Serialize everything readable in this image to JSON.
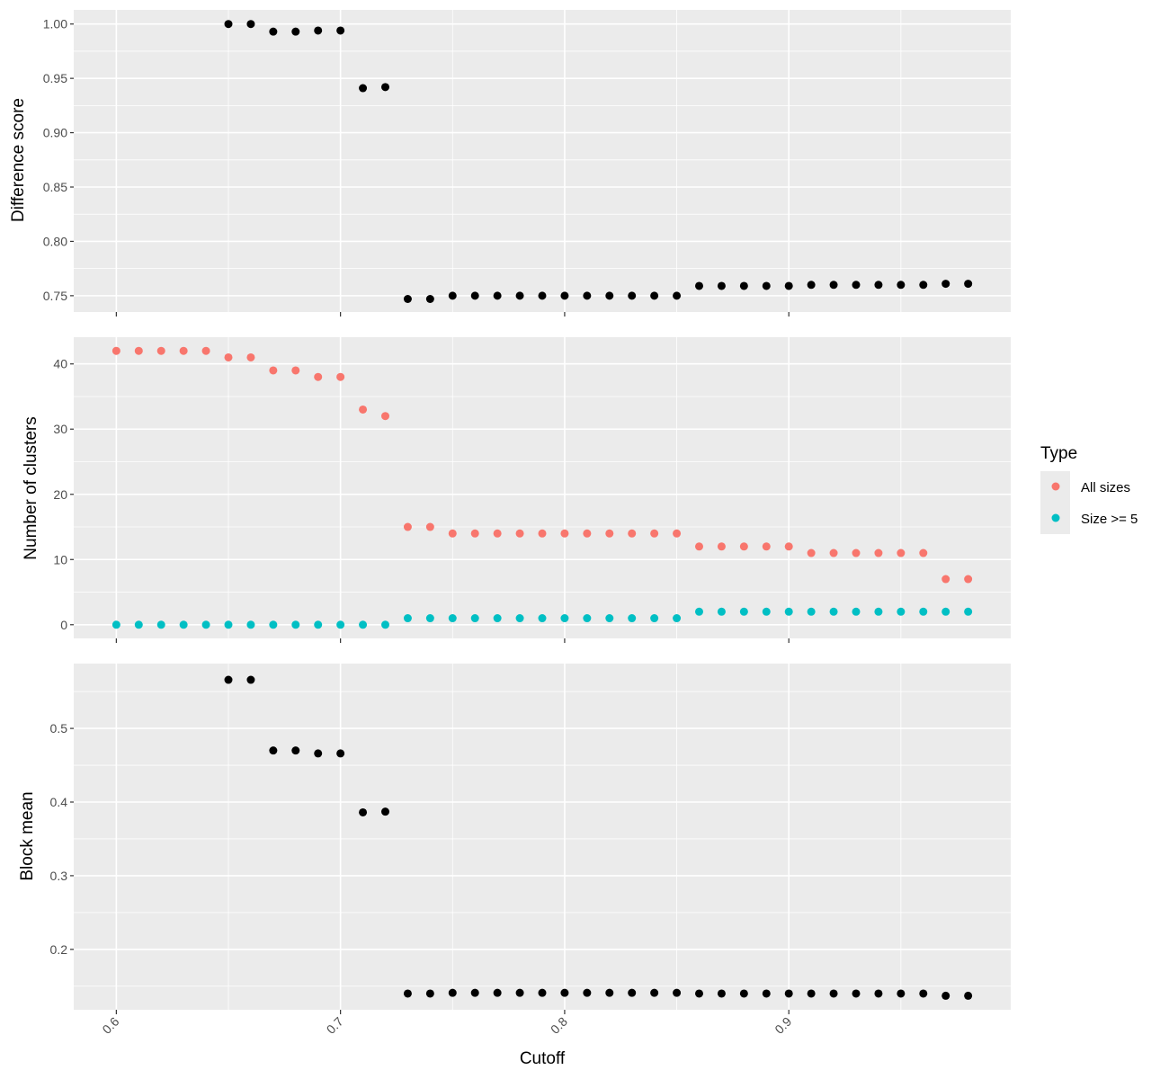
{
  "chart_data": [
    {
      "type": "scatter",
      "id": "difference",
      "ylabel": "Difference score",
      "ylim": [
        0.735,
        1.013
      ],
      "yticks": [
        "0.75",
        "0.80",
        "0.85",
        "0.90",
        "0.95",
        "1.00"
      ],
      "series": [
        {
          "color": "#000000",
          "x": [
            0.65,
            0.66,
            0.67,
            0.68,
            0.69,
            0.7,
            0.71,
            0.72,
            0.73,
            0.74,
            0.75,
            0.76,
            0.77,
            0.78,
            0.79,
            0.8,
            0.81,
            0.82,
            0.83,
            0.84,
            0.85,
            0.86,
            0.87,
            0.88,
            0.89,
            0.9,
            0.91,
            0.92,
            0.93,
            0.94,
            0.95,
            0.96,
            0.97,
            0.98
          ],
          "y": [
            1.0,
            1.0,
            0.993,
            0.993,
            0.994,
            0.994,
            0.941,
            0.942,
            0.747,
            0.747,
            0.75,
            0.75,
            0.75,
            0.75,
            0.75,
            0.75,
            0.75,
            0.75,
            0.75,
            0.75,
            0.75,
            0.759,
            0.759,
            0.759,
            0.759,
            0.759,
            0.76,
            0.76,
            0.76,
            0.76,
            0.76,
            0.76,
            0.761,
            0.761
          ]
        }
      ]
    },
    {
      "type": "scatter",
      "id": "clusters",
      "ylabel": "Number of clusters",
      "ylim": [
        -2.1,
        44.1
      ],
      "yticks": [
        "0",
        "10",
        "20",
        "30",
        "40"
      ],
      "legend": {
        "title": "Type",
        "placement": "right",
        "entries": [
          {
            "label": "All sizes",
            "color": "#F8766D"
          },
          {
            "label": "Size >= 5",
            "color": "#00BFC4"
          }
        ]
      },
      "series": [
        {
          "name": "All sizes",
          "color": "#F8766D",
          "x": [
            0.6,
            0.61,
            0.62,
            0.63,
            0.64,
            0.65,
            0.66,
            0.67,
            0.68,
            0.69,
            0.7,
            0.71,
            0.72,
            0.73,
            0.74,
            0.75,
            0.76,
            0.77,
            0.78,
            0.79,
            0.8,
            0.81,
            0.82,
            0.83,
            0.84,
            0.85,
            0.86,
            0.87,
            0.88,
            0.89,
            0.9,
            0.91,
            0.92,
            0.93,
            0.94,
            0.95,
            0.96,
            0.97,
            0.98
          ],
          "y": [
            42,
            42,
            42,
            42,
            42,
            41,
            41,
            39,
            39,
            38,
            38,
            33,
            32,
            15,
            15,
            14,
            14,
            14,
            14,
            14,
            14,
            14,
            14,
            14,
            14,
            14,
            12,
            12,
            12,
            12,
            12,
            11,
            11,
            11,
            11,
            11,
            11,
            7,
            7
          ]
        },
        {
          "name": "Size >= 5",
          "color": "#00BFC4",
          "x": [
            0.6,
            0.61,
            0.62,
            0.63,
            0.64,
            0.65,
            0.66,
            0.67,
            0.68,
            0.69,
            0.7,
            0.71,
            0.72,
            0.73,
            0.74,
            0.75,
            0.76,
            0.77,
            0.78,
            0.79,
            0.8,
            0.81,
            0.82,
            0.83,
            0.84,
            0.85,
            0.86,
            0.87,
            0.88,
            0.89,
            0.9,
            0.91,
            0.92,
            0.93,
            0.94,
            0.95,
            0.96,
            0.97,
            0.98
          ],
          "y": [
            0,
            0,
            0,
            0,
            0,
            0,
            0,
            0,
            0,
            0,
            0,
            0,
            0,
            1,
            1,
            1,
            1,
            1,
            1,
            1,
            1,
            1,
            1,
            1,
            1,
            1,
            2,
            2,
            2,
            2,
            2,
            2,
            2,
            2,
            2,
            2,
            2,
            2,
            2
          ]
        }
      ]
    },
    {
      "type": "scatter",
      "id": "blockmean",
      "ylabel": "Block mean",
      "xlabel": "Cutoff",
      "ylim": [
        0.118,
        0.588
      ],
      "yticks": [
        "0.2",
        "0.3",
        "0.4",
        "0.5"
      ],
      "series": [
        {
          "color": "#000000",
          "x": [
            0.65,
            0.66,
            0.67,
            0.68,
            0.69,
            0.7,
            0.71,
            0.72,
            0.73,
            0.74,
            0.75,
            0.76,
            0.77,
            0.78,
            0.79,
            0.8,
            0.81,
            0.82,
            0.83,
            0.84,
            0.85,
            0.86,
            0.87,
            0.88,
            0.89,
            0.9,
            0.91,
            0.92,
            0.93,
            0.94,
            0.95,
            0.96,
            0.97,
            0.98
          ],
          "y": [
            0.566,
            0.566,
            0.47,
            0.47,
            0.466,
            0.466,
            0.386,
            0.387,
            0.14,
            0.14,
            0.141,
            0.141,
            0.141,
            0.141,
            0.141,
            0.141,
            0.141,
            0.141,
            0.141,
            0.141,
            0.141,
            0.14,
            0.14,
            0.14,
            0.14,
            0.14,
            0.14,
            0.14,
            0.14,
            0.14,
            0.14,
            0.14,
            0.137,
            0.137
          ]
        }
      ]
    }
  ],
  "x_axis": {
    "label": "Cutoff",
    "xlim": [
      0.581,
      0.999
    ],
    "ticks": [
      "0.6",
      "0.7",
      "0.8",
      "0.9"
    ]
  }
}
